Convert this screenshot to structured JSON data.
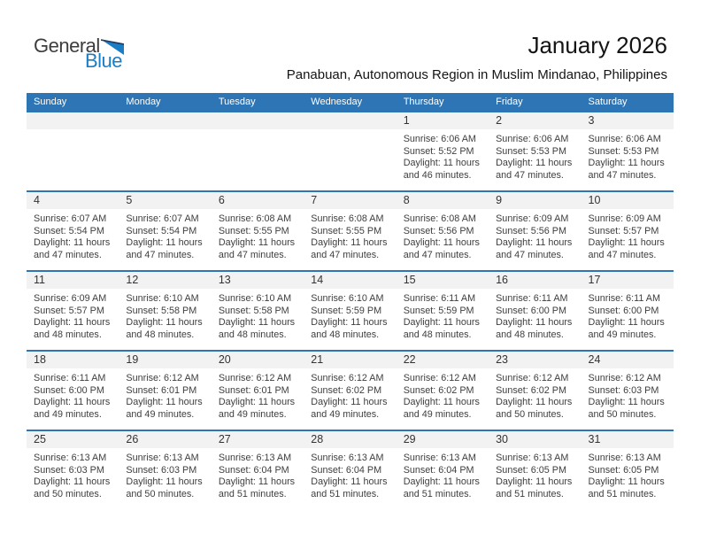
{
  "logo": {
    "line1": "General",
    "line2": "Blue"
  },
  "header": {
    "title": "January 2026",
    "subtitle": "Panabuan, Autonomous Region in Muslim Mindanao, Philippines"
  },
  "colors": {
    "accent": "#2e75b5",
    "band": "#f2f2f2",
    "logo_blue": "#1b7dc4",
    "logo_dark": "#3d3d3d",
    "triangle_edge": "#223a5e"
  },
  "icons": {
    "logo_triangle": "blue-pennant-triangle"
  },
  "calendar": {
    "weekdays": [
      "Sunday",
      "Monday",
      "Tuesday",
      "Wednesday",
      "Thursday",
      "Friday",
      "Saturday"
    ],
    "weeks": [
      [
        null,
        null,
        null,
        null,
        {
          "day": "1",
          "sunrise": "Sunrise: 6:06 AM",
          "sunset": "Sunset: 5:52 PM",
          "daylight_line1": "Daylight: 11 hours",
          "daylight_line2": "and 46 minutes."
        },
        {
          "day": "2",
          "sunrise": "Sunrise: 6:06 AM",
          "sunset": "Sunset: 5:53 PM",
          "daylight_line1": "Daylight: 11 hours",
          "daylight_line2": "and 47 minutes."
        },
        {
          "day": "3",
          "sunrise": "Sunrise: 6:06 AM",
          "sunset": "Sunset: 5:53 PM",
          "daylight_line1": "Daylight: 11 hours",
          "daylight_line2": "and 47 minutes."
        }
      ],
      [
        {
          "day": "4",
          "sunrise": "Sunrise: 6:07 AM",
          "sunset": "Sunset: 5:54 PM",
          "daylight_line1": "Daylight: 11 hours",
          "daylight_line2": "and 47 minutes."
        },
        {
          "day": "5",
          "sunrise": "Sunrise: 6:07 AM",
          "sunset": "Sunset: 5:54 PM",
          "daylight_line1": "Daylight: 11 hours",
          "daylight_line2": "and 47 minutes."
        },
        {
          "day": "6",
          "sunrise": "Sunrise: 6:08 AM",
          "sunset": "Sunset: 5:55 PM",
          "daylight_line1": "Daylight: 11 hours",
          "daylight_line2": "and 47 minutes."
        },
        {
          "day": "7",
          "sunrise": "Sunrise: 6:08 AM",
          "sunset": "Sunset: 5:55 PM",
          "daylight_line1": "Daylight: 11 hours",
          "daylight_line2": "and 47 minutes."
        },
        {
          "day": "8",
          "sunrise": "Sunrise: 6:08 AM",
          "sunset": "Sunset: 5:56 PM",
          "daylight_line1": "Daylight: 11 hours",
          "daylight_line2": "and 47 minutes."
        },
        {
          "day": "9",
          "sunrise": "Sunrise: 6:09 AM",
          "sunset": "Sunset: 5:56 PM",
          "daylight_line1": "Daylight: 11 hours",
          "daylight_line2": "and 47 minutes."
        },
        {
          "day": "10",
          "sunrise": "Sunrise: 6:09 AM",
          "sunset": "Sunset: 5:57 PM",
          "daylight_line1": "Daylight: 11 hours",
          "daylight_line2": "and 47 minutes."
        }
      ],
      [
        {
          "day": "11",
          "sunrise": "Sunrise: 6:09 AM",
          "sunset": "Sunset: 5:57 PM",
          "daylight_line1": "Daylight: 11 hours",
          "daylight_line2": "and 48 minutes."
        },
        {
          "day": "12",
          "sunrise": "Sunrise: 6:10 AM",
          "sunset": "Sunset: 5:58 PM",
          "daylight_line1": "Daylight: 11 hours",
          "daylight_line2": "and 48 minutes."
        },
        {
          "day": "13",
          "sunrise": "Sunrise: 6:10 AM",
          "sunset": "Sunset: 5:58 PM",
          "daylight_line1": "Daylight: 11 hours",
          "daylight_line2": "and 48 minutes."
        },
        {
          "day": "14",
          "sunrise": "Sunrise: 6:10 AM",
          "sunset": "Sunset: 5:59 PM",
          "daylight_line1": "Daylight: 11 hours",
          "daylight_line2": "and 48 minutes."
        },
        {
          "day": "15",
          "sunrise": "Sunrise: 6:11 AM",
          "sunset": "Sunset: 5:59 PM",
          "daylight_line1": "Daylight: 11 hours",
          "daylight_line2": "and 48 minutes."
        },
        {
          "day": "16",
          "sunrise": "Sunrise: 6:11 AM",
          "sunset": "Sunset: 6:00 PM",
          "daylight_line1": "Daylight: 11 hours",
          "daylight_line2": "and 48 minutes."
        },
        {
          "day": "17",
          "sunrise": "Sunrise: 6:11 AM",
          "sunset": "Sunset: 6:00 PM",
          "daylight_line1": "Daylight: 11 hours",
          "daylight_line2": "and 49 minutes."
        }
      ],
      [
        {
          "day": "18",
          "sunrise": "Sunrise: 6:11 AM",
          "sunset": "Sunset: 6:00 PM",
          "daylight_line1": "Daylight: 11 hours",
          "daylight_line2": "and 49 minutes."
        },
        {
          "day": "19",
          "sunrise": "Sunrise: 6:12 AM",
          "sunset": "Sunset: 6:01 PM",
          "daylight_line1": "Daylight: 11 hours",
          "daylight_line2": "and 49 minutes."
        },
        {
          "day": "20",
          "sunrise": "Sunrise: 6:12 AM",
          "sunset": "Sunset: 6:01 PM",
          "daylight_line1": "Daylight: 11 hours",
          "daylight_line2": "and 49 minutes."
        },
        {
          "day": "21",
          "sunrise": "Sunrise: 6:12 AM",
          "sunset": "Sunset: 6:02 PM",
          "daylight_line1": "Daylight: 11 hours",
          "daylight_line2": "and 49 minutes."
        },
        {
          "day": "22",
          "sunrise": "Sunrise: 6:12 AM",
          "sunset": "Sunset: 6:02 PM",
          "daylight_line1": "Daylight: 11 hours",
          "daylight_line2": "and 49 minutes."
        },
        {
          "day": "23",
          "sunrise": "Sunrise: 6:12 AM",
          "sunset": "Sunset: 6:02 PM",
          "daylight_line1": "Daylight: 11 hours",
          "daylight_line2": "and 50 minutes."
        },
        {
          "day": "24",
          "sunrise": "Sunrise: 6:12 AM",
          "sunset": "Sunset: 6:03 PM",
          "daylight_line1": "Daylight: 11 hours",
          "daylight_line2": "and 50 minutes."
        }
      ],
      [
        {
          "day": "25",
          "sunrise": "Sunrise: 6:13 AM",
          "sunset": "Sunset: 6:03 PM",
          "daylight_line1": "Daylight: 11 hours",
          "daylight_line2": "and 50 minutes."
        },
        {
          "day": "26",
          "sunrise": "Sunrise: 6:13 AM",
          "sunset": "Sunset: 6:03 PM",
          "daylight_line1": "Daylight: 11 hours",
          "daylight_line2": "and 50 minutes."
        },
        {
          "day": "27",
          "sunrise": "Sunrise: 6:13 AM",
          "sunset": "Sunset: 6:04 PM",
          "daylight_line1": "Daylight: 11 hours",
          "daylight_line2": "and 51 minutes."
        },
        {
          "day": "28",
          "sunrise": "Sunrise: 6:13 AM",
          "sunset": "Sunset: 6:04 PM",
          "daylight_line1": "Daylight: 11 hours",
          "daylight_line2": "and 51 minutes."
        },
        {
          "day": "29",
          "sunrise": "Sunrise: 6:13 AM",
          "sunset": "Sunset: 6:04 PM",
          "daylight_line1": "Daylight: 11 hours",
          "daylight_line2": "and 51 minutes."
        },
        {
          "day": "30",
          "sunrise": "Sunrise: 6:13 AM",
          "sunset": "Sunset: 6:05 PM",
          "daylight_line1": "Daylight: 11 hours",
          "daylight_line2": "and 51 minutes."
        },
        {
          "day": "31",
          "sunrise": "Sunrise: 6:13 AM",
          "sunset": "Sunset: 6:05 PM",
          "daylight_line1": "Daylight: 11 hours",
          "daylight_line2": "and 51 minutes."
        }
      ]
    ]
  }
}
